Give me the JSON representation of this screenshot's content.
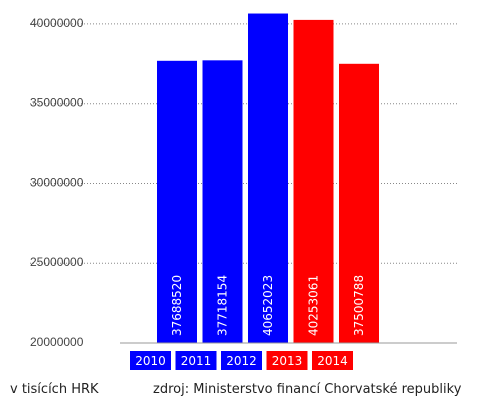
{
  "chart_data": {
    "type": "bar",
    "categories": [
      "2010",
      "2011",
      "2012",
      "2013",
      "2014"
    ],
    "values": [
      37688520,
      37718154,
      40652023,
      40253061,
      37500788
    ],
    "bar_colors": [
      "#0000ff",
      "#0000ff",
      "#0000ff",
      "#ff0000",
      "#ff0000"
    ],
    "ylim": [
      20000000,
      41500000
    ],
    "yticks": [
      20000000,
      25000000,
      30000000,
      35000000,
      40000000
    ],
    "ytick_labels": [
      "20000000",
      "25000000",
      "30000000",
      "35000000",
      "40000000"
    ],
    "value_labels": [
      "37688520",
      "37718154",
      "40652023",
      "40253061",
      "37500788"
    ],
    "grid": true,
    "legend_position": "bottom"
  },
  "footer": {
    "unit_note": "v tisících HRK",
    "source_note": "zdroj: Ministerstvo financí Chorvatské republiky"
  }
}
